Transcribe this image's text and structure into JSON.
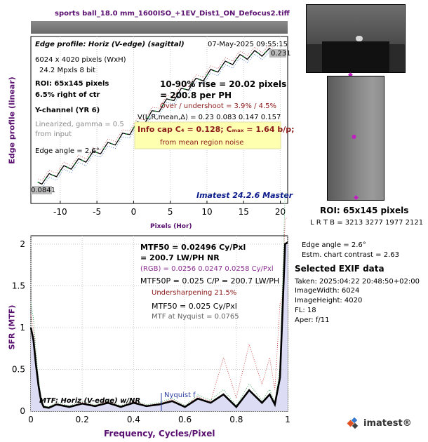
{
  "title": "sports ball_18.0 mm_1600ISO_+1EV_Dist1_ON_Defocus2.tiff",
  "top_chart": {
    "panel_title": "Edge profile: Horiz (V-edge) (sagittal)",
    "date": "07-May-2025 09:55:15",
    "pixels": "6024 x 4020 pixels (WxH)",
    "mpxls": "24.2 Mpxls    8 bit",
    "roi": "ROI:  65x145 pixels",
    "pct_right": "6.5% right of ctr",
    "channel": "Y-channel  (YR 6)",
    "linearized_1": "Linearized, gamma = 0.5",
    "linearized_2": "from input",
    "edge_angle": "Edge angle = 2.6°",
    "rise_1": "10-90% rise = 20.02 pixels",
    "rise_2": "= 200.8 per PH",
    "overshoot": "Over / undershoot =  3.9% /  4.5%",
    "vlr": "V(L,R,mean,Δ) = 0.23  0.083  0.147  0.157",
    "infocap": "Info cap C₄ = 0.128;  Cₘₐₓ = 1.64 b/p;",
    "noise": "from mean region noise",
    "imatest_version": "Imatest 24.2.6 Master",
    "ylabel": "Edge profile (linear)",
    "xlabel": "Pixels (Hor)",
    "xticks": [
      "-10",
      "-5",
      "0",
      "5",
      "10",
      "15",
      "20"
    ],
    "hi_label": "0.231",
    "lo_label": "0.0841"
  },
  "bottom_chart": {
    "mtf50_1": "MTF50 = 0.02496 Cy/Pxl",
    "mtf50_2": "= 200.7 LW/PH  NR",
    "rgb": "(RGB) = 0.0256  0.0247  0.0258 Cy/Pxl",
    "mtf50p": "MTF50P = 0.025 C/P = 200.7 LW/PH",
    "undersharp": "Undersharpening 21.5%",
    "mtf50b": "MTF50 = 0.025 Cy/Pxl",
    "nyq": "MTF at Nyquist = 0.0765",
    "legend": "MTF: Horiz (V-edge) w/NR",
    "nyquist_label": "Nyquist f",
    "ylabel": "SFR (MTF)",
    "xlabel": "Frequency, Cycles/Pixel",
    "xticks": [
      "0",
      "0.2",
      "0.4",
      "0.6",
      "0.8",
      "1"
    ],
    "yticks": [
      "0",
      "0.5",
      "1",
      "1.5",
      "2"
    ]
  },
  "right_panel": {
    "roi": "ROI:  65x145 pixels",
    "lrtb": "L R  T B = 3213 3277  1977 2121",
    "edge_angle": "Edge angle = 2.6°",
    "contrast": "Estm. chart contrast = 2.63",
    "exif_title": "Selected EXIF data",
    "taken": "Taken: 2025:04:22 20:48:50+02:00",
    "width": "ImageWidth:  6024",
    "height": "ImageHeight:  4020",
    "fl": "FL:    18",
    "aper": "Aper:  f/11",
    "logo": "imatest®"
  },
  "chart_data": [
    {
      "type": "line",
      "title": "Edge profile: Horiz (V-edge) (sagittal)",
      "xlabel": "Pixels (Hor)",
      "ylabel": "Edge profile (linear)",
      "xlim": [
        -14,
        21
      ],
      "ylim": [
        0.06,
        0.25
      ],
      "series": [
        {
          "color": "#000000",
          "x": [
            -13,
            -12,
            -11,
            -10,
            -9,
            -8,
            -7,
            -6,
            -5,
            -4,
            -3,
            -2,
            -1,
            0,
            1,
            2,
            3,
            4,
            5,
            6,
            7,
            8,
            9,
            10,
            11,
            12,
            13,
            14,
            15,
            16,
            17,
            18,
            19
          ],
          "y": [
            0.084,
            0.088,
            0.092,
            0.097,
            0.101,
            0.105,
            0.109,
            0.113,
            0.118,
            0.123,
            0.128,
            0.133,
            0.139,
            0.146,
            0.152,
            0.158,
            0.165,
            0.172,
            0.178,
            0.184,
            0.19,
            0.196,
            0.201,
            0.206,
            0.211,
            0.216,
            0.22,
            0.224,
            0.227,
            0.229,
            0.231,
            0.232,
            0.233
          ]
        }
      ]
    },
    {
      "type": "line",
      "title": "",
      "xlabel": "Frequency, Cycles/Pixel",
      "ylabel": "SFR (MTF)",
      "xlim": [
        0,
        1
      ],
      "ylim": [
        0,
        2.1
      ],
      "series": [
        {
          "color": "#000000",
          "x": [
            0,
            0.01,
            0.02,
            0.03,
            0.04,
            0.05,
            0.07,
            0.1,
            0.15,
            0.2,
            0.25,
            0.3,
            0.35,
            0.4,
            0.45,
            0.5,
            0.55,
            0.6,
            0.65,
            0.7,
            0.75,
            0.8,
            0.85,
            0.9,
            0.93,
            0.95,
            0.97,
            0.98,
            0.99,
            1.0
          ],
          "y": [
            1.0,
            0.85,
            0.55,
            0.3,
            0.12,
            0.05,
            0.04,
            0.08,
            0.05,
            0.09,
            0.06,
            0.1,
            0.05,
            0.1,
            0.06,
            0.08,
            0.12,
            0.05,
            0.15,
            0.1,
            0.2,
            0.05,
            0.25,
            0.1,
            0.2,
            0.08,
            0.4,
            1.2,
            2.0,
            2.02
          ]
        }
      ]
    }
  ]
}
